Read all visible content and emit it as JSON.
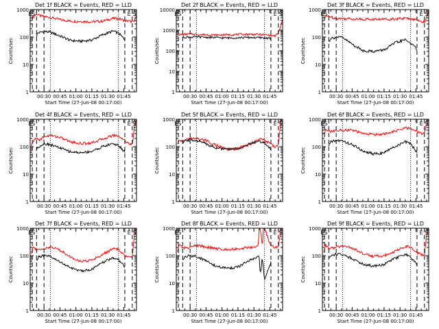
{
  "chart_data": [
    {
      "type": "line",
      "title": "Det 1f BLACK = Events, RED = LLD",
      "xlabel": "Start Time (27-Jun-08 00:17:00)",
      "ylabel": "Counts/sec",
      "yscale": "log",
      "ylim": [
        1,
        1000
      ],
      "xlim": [
        17,
        117
      ],
      "x_ticks": [
        "00:30",
        "00:45",
        "01:00",
        "01:15",
        "01:30",
        "01:45"
      ],
      "y_ticks": [
        "1",
        "10",
        "100",
        "1000"
      ],
      "grid": false,
      "markers": [
        {
          "label": "ES",
          "x": 18.5
        },
        {
          "label": "E",
          "x": 110
        },
        {
          "label": "S",
          "x": 115
        }
      ],
      "dashed_lines": [
        19,
        23,
        30,
        106,
        113
      ],
      "dotted_lines": [
        36,
        100
      ],
      "series": [
        {
          "color": "#ff0000",
          "x": [
            19,
            23,
            26,
            30,
            36,
            45,
            55,
            65,
            75,
            85,
            95,
            100,
            106,
            110,
            113,
            115,
            117
          ],
          "y": [
            500,
            700,
            600,
            560,
            520,
            430,
            380,
            370,
            360,
            380,
            480,
            470,
            400,
            380,
            360,
            360,
            700
          ]
        },
        {
          "color": "#000000",
          "x": [
            23,
            24,
            30,
            36,
            45,
            55,
            65,
            75,
            85,
            95,
            100,
            106
          ],
          "y": [
            110,
            140,
            160,
            150,
            110,
            75,
            70,
            78,
            120,
            165,
            140,
            80
          ]
        }
      ]
    },
    {
      "type": "line",
      "title": "Det 2f BLACK = Events, RED = LLD",
      "xlabel": "Start Time (27-Jun-08 00:17:00)",
      "ylabel": "Counts/sec",
      "yscale": "log",
      "ylim": [
        1,
        10000
      ],
      "xlim": [
        17,
        117
      ],
      "x_ticks": [
        "00:30",
        "00:45",
        "01:00",
        "01:15",
        "01:30",
        "01:45"
      ],
      "y_ticks": [
        "1",
        "10",
        "100",
        "1000",
        "10000"
      ],
      "grid": false,
      "markers": [
        {
          "label": "ES",
          "x": 18.5
        },
        {
          "label": "E",
          "x": 110
        },
        {
          "label": "S",
          "x": 115
        }
      ],
      "dashed_lines": [
        19,
        23,
        30,
        106,
        113
      ],
      "dotted_lines": [
        36,
        100
      ],
      "series": [
        {
          "color": "#ff0000",
          "x": [
            19,
            23,
            30,
            36,
            45,
            55,
            65,
            75,
            85,
            95,
            100,
            106,
            110,
            113,
            115,
            117
          ],
          "y": [
            600,
            620,
            650,
            620,
            600,
            580,
            600,
            620,
            640,
            620,
            600,
            560,
            520,
            700,
            1500,
            3000
          ]
        },
        {
          "color": "#000000",
          "x": [
            23,
            30,
            36,
            45,
            55,
            65,
            75,
            85,
            95,
            100,
            106
          ],
          "y": [
            450,
            460,
            470,
            450,
            430,
            420,
            430,
            440,
            430,
            420,
            400
          ]
        }
      ]
    },
    {
      "type": "line",
      "title": "Det 3f BLACK = Events, RED = LLD",
      "xlabel": "Start Time (27-Jun-08 00:17:00)",
      "ylabel": "Counts/sec",
      "yscale": "log",
      "ylim": [
        1,
        1000
      ],
      "xlim": [
        17,
        117
      ],
      "x_ticks": [
        "00:30",
        "00:45",
        "01:00",
        "01:15",
        "01:30",
        "01:45"
      ],
      "y_ticks": [
        "1",
        "10",
        "100",
        "1000"
      ],
      "grid": false,
      "markers": [
        {
          "label": "ES",
          "x": 18.5
        },
        {
          "label": "E",
          "x": 110
        },
        {
          "label": "S",
          "x": 115
        }
      ],
      "dashed_lines": [
        19,
        23,
        30,
        106,
        113
      ],
      "dotted_lines": [
        36,
        100
      ],
      "series": [
        {
          "color": "#ff0000",
          "x": [
            19,
            23,
            26,
            30,
            36,
            45,
            55,
            65,
            75,
            85,
            95,
            100,
            106,
            110,
            113,
            115,
            117
          ],
          "y": [
            500,
            600,
            520,
            480,
            470,
            460,
            450,
            440,
            450,
            460,
            480,
            470,
            420,
            380,
            360,
            520,
            1000
          ]
        },
        {
          "color": "#000000",
          "x": [
            23,
            25,
            30,
            36,
            45,
            55,
            65,
            75,
            85,
            95,
            100,
            106
          ],
          "y": [
            70,
            90,
            100,
            95,
            55,
            32,
            30,
            34,
            60,
            80,
            60,
            35
          ]
        }
      ]
    },
    {
      "type": "line",
      "title": "Det 4f BLACK = Events, RED = LLD",
      "xlabel": "Start Time (27-Jun-08 00:17:00)",
      "ylabel": "Counts/sec",
      "yscale": "log",
      "ylim": [
        1,
        1000
      ],
      "xlim": [
        17,
        117
      ],
      "x_ticks": [
        "00:30",
        "00:45",
        "01:00",
        "01:15",
        "01:30",
        "01:45"
      ],
      "y_ticks": [
        "1",
        "10",
        "100",
        "1000"
      ],
      "grid": false,
      "markers": [
        {
          "label": "ES",
          "x": 18.5
        },
        {
          "label": "E",
          "x": 110
        },
        {
          "label": "S",
          "x": 115
        }
      ],
      "dashed_lines": [
        19,
        23,
        30,
        106,
        113
      ],
      "dotted_lines": [
        36,
        100
      ],
      "series": [
        {
          "color": "#ff0000",
          "x": [
            18,
            20,
            23,
            26,
            30,
            36,
            45,
            55,
            65,
            75,
            85,
            95,
            100,
            106,
            110,
            113,
            114,
            115,
            117
          ],
          "y": [
            100,
            170,
            200,
            180,
            230,
            260,
            220,
            150,
            130,
            140,
            190,
            260,
            250,
            170,
            130,
            120,
            200,
            600,
            1000
          ]
        },
        {
          "color": "#000000",
          "x": [
            23,
            25,
            30,
            36,
            45,
            55,
            65,
            75,
            85,
            95,
            100,
            106
          ],
          "y": [
            80,
            100,
            130,
            120,
            90,
            65,
            60,
            68,
            100,
            130,
            110,
            65
          ]
        }
      ]
    },
    {
      "type": "line",
      "title": "Det 5f BLACK = Events, RED = LLD",
      "xlabel": "Start Time (27-Jun-08 00:17:00)",
      "ylabel": "Counts/sec",
      "yscale": "log",
      "ylim": [
        1,
        1000
      ],
      "xlim": [
        17,
        117
      ],
      "x_ticks": [
        "00:30",
        "00:45",
        "01:00",
        "01:15",
        "01:30",
        "01:45"
      ],
      "y_ticks": [
        "1",
        "10",
        "100",
        "1000"
      ],
      "grid": false,
      "markers": [
        {
          "label": "ES",
          "x": 18.5
        },
        {
          "label": "E",
          "x": 110
        },
        {
          "label": "S",
          "x": 115
        }
      ],
      "dashed_lines": [
        19,
        23,
        30,
        106,
        113
      ],
      "dotted_lines": [
        36,
        100
      ],
      "series": [
        {
          "color": "#ff0000",
          "x": [
            18,
            20,
            23,
            30,
            36,
            45,
            55,
            65,
            75,
            85,
            95,
            100,
            106,
            110,
            113,
            115,
            117
          ],
          "y": [
            120,
            170,
            160,
            200,
            200,
            170,
            110,
            80,
            85,
            120,
            190,
            180,
            120,
            100,
            120,
            700,
            1200
          ]
        },
        {
          "color": "#000000",
          "x": [
            23,
            25,
            30,
            36,
            45,
            55,
            65,
            75,
            85,
            95,
            100,
            106
          ],
          "y": [
            130,
            160,
            180,
            170,
            130,
            90,
            80,
            85,
            120,
            160,
            140,
            80
          ]
        }
      ]
    },
    {
      "type": "line",
      "title": "Det 6f BLACK = Events, RED = LLD",
      "xlabel": "Start Time (27-Jun-08 00:17:00)",
      "ylabel": "Counts/sec",
      "yscale": "log",
      "ylim": [
        1,
        1000
      ],
      "xlim": [
        17,
        117
      ],
      "x_ticks": [
        "00:30",
        "00:45",
        "01:00",
        "01:15",
        "01:30",
        "01:45"
      ],
      "y_ticks": [
        "1",
        "10",
        "100",
        "1000"
      ],
      "grid": false,
      "markers": [
        {
          "label": "ES",
          "x": 18.5
        },
        {
          "label": "E",
          "x": 110
        },
        {
          "label": "S",
          "x": 115
        }
      ],
      "dashed_lines": [
        19,
        23,
        30,
        106,
        113
      ],
      "dotted_lines": [
        36,
        100
      ],
      "series": [
        {
          "color": "#ff0000",
          "x": [
            18,
            20,
            23,
            30,
            36,
            45,
            55,
            65,
            75,
            85,
            95,
            100,
            106,
            110,
            113,
            115,
            117
          ],
          "y": [
            300,
            400,
            360,
            380,
            400,
            400,
            300,
            280,
            290,
            360,
            480,
            460,
            360,
            300,
            300,
            700,
            1200
          ]
        },
        {
          "color": "#000000",
          "x": [
            23,
            25,
            30,
            36,
            45,
            55,
            65,
            75,
            85,
            95,
            100,
            106
          ],
          "y": [
            110,
            150,
            170,
            160,
            120,
            70,
            55,
            60,
            100,
            150,
            130,
            60
          ]
        }
      ]
    },
    {
      "type": "line",
      "title": "Det 7f BLACK = Events, RED = LLD",
      "xlabel": "Start Time (27-Jun-08 00:17:00)",
      "ylabel": "Counts/sec",
      "yscale": "log",
      "ylim": [
        1,
        1000
      ],
      "xlim": [
        17,
        117
      ],
      "x_ticks": [
        "00:30",
        "00:45",
        "01:00",
        "01:15",
        "01:30",
        "01:45"
      ],
      "y_ticks": [
        "1",
        "10",
        "100",
        "1000"
      ],
      "grid": false,
      "markers": [
        {
          "label": "ES",
          "x": 18.5
        },
        {
          "label": "E",
          "x": 110
        },
        {
          "label": "S",
          "x": 115
        }
      ],
      "dashed_lines": [
        19,
        23,
        30,
        106,
        113
      ],
      "dotted_lines": [
        36,
        100
      ],
      "series": [
        {
          "color": "#ff0000",
          "x": [
            18,
            20,
            23,
            30,
            36,
            45,
            55,
            65,
            75,
            85,
            95,
            100,
            106,
            110,
            113,
            115,
            117
          ],
          "y": [
            120,
            220,
            160,
            180,
            210,
            160,
            90,
            60,
            70,
            110,
            180,
            170,
            100,
            90,
            80,
            600,
            1200
          ]
        },
        {
          "color": "#000000",
          "x": [
            23,
            25,
            30,
            36,
            45,
            55,
            65,
            75,
            85,
            95,
            100,
            106
          ],
          "y": [
            70,
            90,
            100,
            90,
            60,
            35,
            28,
            32,
            55,
            85,
            70,
            40
          ]
        }
      ]
    },
    {
      "type": "line",
      "title": "Det 8f BLACK = Events, RED = LLD",
      "xlabel": "Start Time (27-Jun-08 00:17:00)",
      "ylabel": "Counts/sec",
      "yscale": "log",
      "ylim": [
        1,
        1000
      ],
      "xlim": [
        17,
        117
      ],
      "x_ticks": [
        "00:30",
        "00:45",
        "01:00",
        "01:15",
        "01:30",
        "01:45"
      ],
      "y_ticks": [
        "1",
        "10",
        "100",
        "1000"
      ],
      "grid": false,
      "markers": [
        {
          "label": "ES",
          "x": 18.5
        },
        {
          "label": "E",
          "x": 110
        },
        {
          "label": "S",
          "x": 115
        }
      ],
      "dashed_lines": [
        19,
        23,
        30,
        106,
        113
      ],
      "dotted_lines": [
        36,
        100
      ],
      "series": [
        {
          "color": "#ff0000",
          "x": [
            18,
            20,
            23,
            30,
            36,
            45,
            55,
            65,
            75,
            85,
            94,
            95,
            96,
            98,
            99,
            100,
            106,
            110,
            113,
            115,
            117
          ],
          "y": [
            150,
            260,
            190,
            200,
            240,
            210,
            180,
            170,
            180,
            200,
            220,
            1000,
            1000,
            220,
            1000,
            1000,
            220,
            200,
            200,
            700,
            1100
          ]
        },
        {
          "color": "#000000",
          "x": [
            23,
            25,
            30,
            36,
            45,
            55,
            65,
            75,
            85,
            95,
            96,
            98,
            100,
            106
          ],
          "y": [
            70,
            90,
            100,
            95,
            65,
            40,
            35,
            38,
            65,
            90,
            20,
            90,
            12,
            60
          ]
        }
      ]
    },
    {
      "type": "line",
      "title": "Det 9f BLACK = Events, RED = LLD",
      "xlabel": "Start Time (27-Jun-08 00:17:00)",
      "ylabel": "Counts/sec",
      "yscale": "log",
      "ylim": [
        1,
        1000
      ],
      "xlim": [
        17,
        117
      ],
      "x_ticks": [
        "00:30",
        "00:45",
        "01:00",
        "01:15",
        "01:30",
        "01:45"
      ],
      "y_ticks": [
        "1",
        "10",
        "100",
        "1000"
      ],
      "grid": false,
      "markers": [
        {
          "label": "ES",
          "x": 18.5
        },
        {
          "label": "E",
          "x": 110
        },
        {
          "label": "S",
          "x": 115
        }
      ],
      "dashed_lines": [
        19,
        23,
        30,
        106,
        113
      ],
      "dotted_lines": [
        36,
        100
      ],
      "series": [
        {
          "color": "#ff0000",
          "x": [
            18,
            20,
            23,
            30,
            36,
            45,
            55,
            65,
            75,
            85,
            95,
            100,
            106,
            110,
            113,
            115,
            117
          ],
          "y": [
            130,
            250,
            180,
            200,
            230,
            190,
            120,
            95,
            100,
            140,
            220,
            210,
            130,
            110,
            110,
            600,
            1200
          ]
        },
        {
          "color": "#000000",
          "x": [
            23,
            25,
            30,
            36,
            45,
            55,
            65,
            75,
            85,
            95,
            100,
            106
          ],
          "y": [
            80,
            100,
            115,
            110,
            80,
            50,
            42,
            48,
            80,
            110,
            90,
            45
          ]
        }
      ]
    }
  ]
}
